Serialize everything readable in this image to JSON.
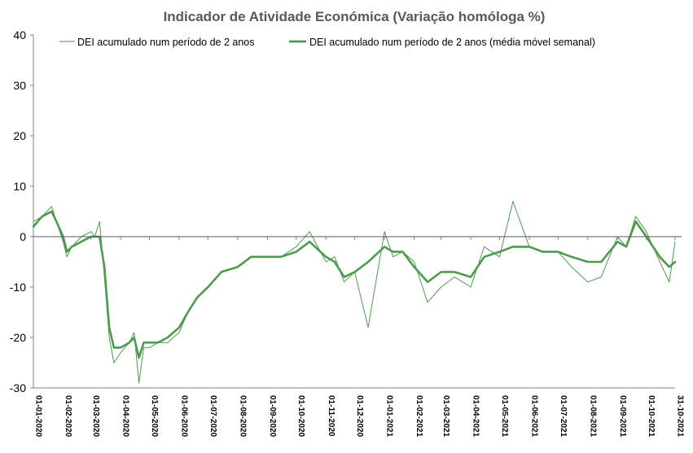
{
  "chart_data": {
    "type": "line",
    "title": "Indicador de Atividade Económica (Variação homóloga %)",
    "xlabel": "",
    "ylabel": "",
    "ylim": [
      -30,
      40
    ],
    "yticks": [
      "40",
      "30",
      "20",
      "10",
      "0",
      "-10",
      "-20",
      "-30"
    ],
    "xlim": [
      "2020-01-01",
      "2021-10-31"
    ],
    "xtick_labels": [
      "01-01-2020",
      "01-02-2020",
      "01-03-2020",
      "01-04-2020",
      "01-05-2020",
      "01-06-2020",
      "01-07-2020",
      "01-08-2020",
      "01-09-2020",
      "01-10-2020",
      "01-11-2020",
      "01-12-2020",
      "01-01-2021",
      "01-02-2021",
      "01-03-2021",
      "01-04-2021",
      "01-05-2021",
      "01-06-2021",
      "01-07-2021",
      "01-08-2021",
      "01-09-2021",
      "01-10-2021",
      "31-10-2021"
    ],
    "grid": false,
    "legend_position": "top",
    "series": [
      {
        "name": "DEI acumulado num período de 2 anos",
        "color": "#4E9A4E",
        "style": "thin",
        "x": [
          "2020-01-01",
          "2020-01-10",
          "2020-01-20",
          "2020-01-25",
          "2020-02-01",
          "2020-02-05",
          "2020-02-10",
          "2020-02-20",
          "2020-03-01",
          "2020-03-05",
          "2020-03-10",
          "2020-03-15",
          "2020-03-20",
          "2020-03-25",
          "2020-04-01",
          "2020-04-10",
          "2020-04-15",
          "2020-04-20",
          "2020-04-25",
          "2020-05-01",
          "2020-05-10",
          "2020-05-20",
          "2020-06-01",
          "2020-06-10",
          "2020-06-20",
          "2020-07-01",
          "2020-07-15",
          "2020-08-01",
          "2020-08-15",
          "2020-09-01",
          "2020-09-15",
          "2020-10-01",
          "2020-10-15",
          "2020-11-01",
          "2020-11-10",
          "2020-11-20",
          "2020-12-01",
          "2020-12-15",
          "2021-01-01",
          "2021-01-10",
          "2021-01-20",
          "2021-02-01",
          "2021-02-15",
          "2021-03-01",
          "2021-03-15",
          "2021-04-01",
          "2021-04-15",
          "2021-05-01",
          "2021-05-15",
          "2021-06-01",
          "2021-06-15",
          "2021-07-01",
          "2021-07-15",
          "2021-08-01",
          "2021-08-15",
          "2021-09-01",
          "2021-09-10",
          "2021-09-20",
          "2021-10-01",
          "2021-10-15",
          "2021-10-25",
          "2021-10-31"
        ],
        "values": [
          3,
          4,
          6,
          3,
          -1,
          -4,
          -2,
          0,
          1,
          0,
          3,
          -8,
          -20,
          -25,
          -23,
          -21,
          -19,
          -29,
          -22,
          -22,
          -21,
          -21,
          -19,
          -15,
          -12,
          -10,
          -7,
          -6,
          -4,
          -4,
          -4,
          -2,
          1,
          -5,
          -4,
          -9,
          -7,
          -18,
          1,
          -4,
          -3,
          -5,
          -13,
          -10,
          -8,
          -10,
          -2,
          -4,
          7,
          -2,
          -3,
          -3,
          -6,
          -9,
          -8,
          0,
          -2,
          4,
          1,
          -5,
          -9,
          -1
        ]
      },
      {
        "name": "DEI acumulado num período de 2 anos (média móvel semanal)",
        "color": "#4E9A4E",
        "style": "thick",
        "x": [
          "2020-01-01",
          "2020-01-10",
          "2020-01-20",
          "2020-01-25",
          "2020-02-01",
          "2020-02-05",
          "2020-02-10",
          "2020-02-20",
          "2020-03-01",
          "2020-03-05",
          "2020-03-10",
          "2020-03-15",
          "2020-03-20",
          "2020-03-25",
          "2020-04-01",
          "2020-04-10",
          "2020-04-15",
          "2020-04-20",
          "2020-04-25",
          "2020-05-01",
          "2020-05-10",
          "2020-05-20",
          "2020-06-01",
          "2020-06-10",
          "2020-06-20",
          "2020-07-01",
          "2020-07-15",
          "2020-08-01",
          "2020-08-15",
          "2020-09-01",
          "2020-09-15",
          "2020-10-01",
          "2020-10-15",
          "2020-11-01",
          "2020-11-10",
          "2020-11-20",
          "2020-12-01",
          "2020-12-15",
          "2021-01-01",
          "2021-01-10",
          "2021-01-20",
          "2021-02-01",
          "2021-02-15",
          "2021-03-01",
          "2021-03-15",
          "2021-04-01",
          "2021-04-15",
          "2021-05-01",
          "2021-05-15",
          "2021-06-01",
          "2021-06-15",
          "2021-07-01",
          "2021-07-15",
          "2021-08-01",
          "2021-08-15",
          "2021-09-01",
          "2021-09-10",
          "2021-09-20",
          "2021-10-01",
          "2021-10-15",
          "2021-10-25",
          "2021-10-31"
        ],
        "values": [
          2,
          4,
          5,
          3,
          0,
          -3,
          -2,
          -1,
          0,
          0,
          0,
          -6,
          -18,
          -22,
          -22,
          -21,
          -20,
          -24,
          -21,
          -21,
          -21,
          -20,
          -18,
          -15,
          -12,
          -10,
          -7,
          -6,
          -4,
          -4,
          -4,
          -3,
          -1,
          -4,
          -5,
          -8,
          -7,
          -5,
          -2,
          -3,
          -3,
          -6,
          -9,
          -7,
          -7,
          -8,
          -4,
          -3,
          -2,
          -2,
          -3,
          -3,
          -4,
          -5,
          -5,
          -1,
          -2,
          3,
          0,
          -4,
          -6,
          -5
        ]
      }
    ]
  }
}
